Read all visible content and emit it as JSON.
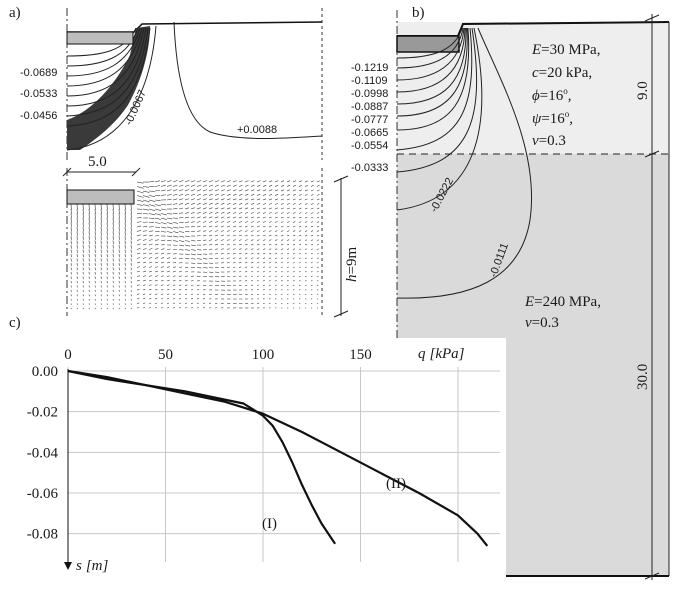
{
  "panel_a": {
    "label": "a)",
    "left_contour_labels": [
      "-0.0689",
      "-0.0533",
      "-0.0456"
    ],
    "inner_label_1": "-0.0067",
    "inner_label_2": "+0.0088",
    "width_label": "5.0",
    "depth_label_pre": "h",
    "depth_label_post": "=9m"
  },
  "panel_b": {
    "label": "b)",
    "contour_labels": [
      "-0.1219",
      "-0.1109",
      "-0.0998",
      "-0.0887",
      "-0.0777",
      "-0.0665",
      "-0.0554",
      "-0.0333"
    ],
    "inner_label_1": "-0.0222",
    "inner_label_2": "-0.0111",
    "layer1": {
      "E_sym": "E",
      "E_val": "=30 MPa,",
      "c_sym": "c",
      "c_val": "=20 kPa,",
      "phi_sym": "ϕ",
      "phi_val": "=16",
      "psi_sym": "ψ",
      "psi_val": "=16",
      "deg_sup": "o",
      "comma": ",",
      "nu_sym": "ν",
      "nu_val": "=0.3"
    },
    "layer2": {
      "E_sym": "E",
      "E_val": "=240 MPa,",
      "nu_sym": "ν",
      "nu_val": "=0.3"
    },
    "dim_top": "9.0",
    "dim_bottom": "30.0"
  },
  "panel_c": {
    "label": "c)",
    "x_axis_label_sym": "q",
    "x_axis_label_unit": "[kPa]",
    "y_axis_label_sym": "s",
    "y_axis_label_unit": "[m]"
  },
  "chart_data": {
    "type": "line",
    "xlabel": "q [kPa]",
    "ylabel": "s [m]",
    "xlim": [
      0,
      220
    ],
    "ylim": [
      -0.09,
      0.0
    ],
    "x_ticks": [
      0,
      50,
      100,
      150
    ],
    "y_ticks": [
      0.0,
      -0.02,
      -0.04,
      -0.06,
      -0.08
    ],
    "y_tick_labels": [
      "0.00",
      "-0.02",
      "-0.04",
      "-0.06",
      "-0.08"
    ],
    "grid": true,
    "series": [
      {
        "name": "(I)",
        "x": [
          0,
          20,
          40,
          60,
          80,
          90,
          95,
          100,
          105,
          110,
          115,
          120,
          125,
          130,
          137
        ],
        "y": [
          0.0,
          -0.004,
          -0.007,
          -0.01,
          -0.014,
          -0.016,
          -0.019,
          -0.022,
          -0.027,
          -0.035,
          -0.045,
          -0.056,
          -0.066,
          -0.075,
          -0.085
        ]
      },
      {
        "name": "(II)",
        "x": [
          0,
          20,
          40,
          60,
          80,
          90,
          100,
          120,
          140,
          160,
          180,
          200,
          210,
          215
        ],
        "y": [
          0.0,
          -0.003,
          -0.007,
          -0.011,
          -0.015,
          -0.018,
          -0.021,
          -0.03,
          -0.04,
          -0.05,
          -0.06,
          -0.071,
          -0.08,
          -0.086
        ]
      }
    ]
  }
}
